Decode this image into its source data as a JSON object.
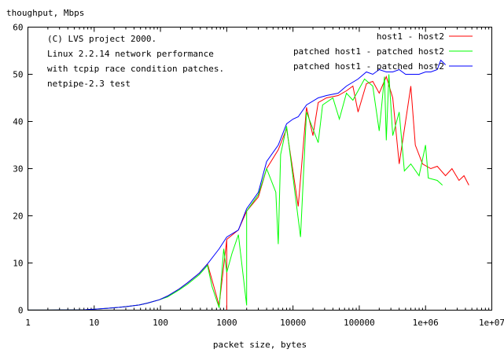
{
  "chart_data": {
    "type": "line",
    "ylabel": "thoughput, Mbps",
    "xlabel": "packet size, bytes",
    "x_scale": "log",
    "xlim": [
      1,
      10000000
    ],
    "ylim": [
      0,
      60
    ],
    "x_ticks": [
      {
        "value": 1,
        "label": "1"
      },
      {
        "value": 10,
        "label": "10"
      },
      {
        "value": 100,
        "label": "100"
      },
      {
        "value": 1000,
        "label": "1000"
      },
      {
        "value": 10000,
        "label": "10000"
      },
      {
        "value": 100000,
        "label": "100000"
      },
      {
        "value": 1000000,
        "label": "1e+06"
      },
      {
        "value": 10000000,
        "label": "1e+07"
      }
    ],
    "y_ticks": [
      {
        "value": 0,
        "label": "0"
      },
      {
        "value": 10,
        "label": "10"
      },
      {
        "value": 20,
        "label": "20"
      },
      {
        "value": 30,
        "label": "30"
      },
      {
        "value": 40,
        "label": "40"
      },
      {
        "value": 50,
        "label": "50"
      },
      {
        "value": 60,
        "label": "60"
      }
    ],
    "annotation": [
      "(C) LVS project 2000.",
      "Linux 2.2.14 network performance",
      "with tcpip race condition patches.",
      "netpipe-2.3 test"
    ],
    "legend_position": "top-right",
    "grid": false,
    "series": [
      {
        "name": "host1 - host2",
        "color": "#ff0000",
        "points": [
          [
            1,
            0.01
          ],
          [
            2,
            0.02
          ],
          [
            3,
            0.03
          ],
          [
            5,
            0.05
          ],
          [
            7,
            0.07
          ],
          [
            10,
            0.2
          ],
          [
            16,
            0.4
          ],
          [
            24,
            0.6
          ],
          [
            32,
            0.8
          ],
          [
            48,
            1.1
          ],
          [
            64,
            1.5
          ],
          [
            96,
            2.2
          ],
          [
            128,
            3.0
          ],
          [
            192,
            4.5
          ],
          [
            256,
            5.8
          ],
          [
            384,
            7.8
          ],
          [
            512,
            9.8
          ],
          [
            640,
            5.0
          ],
          [
            768,
            1.0
          ],
          [
            1000,
            15.0
          ],
          [
            1000,
            0
          ],
          [
            1000,
            15.0
          ],
          [
            1500,
            17.0
          ],
          [
            2000,
            21.0
          ],
          [
            3000,
            24.0
          ],
          [
            4000,
            30.0
          ],
          [
            6000,
            34.0
          ],
          [
            8000,
            38.5
          ],
          [
            12000,
            22.0
          ],
          [
            16000,
            43.0
          ],
          [
            20000,
            37.0
          ],
          [
            24000,
            44.0
          ],
          [
            32000,
            45.0
          ],
          [
            48000,
            45.5
          ],
          [
            64000,
            46.5
          ],
          [
            80000,
            47.5
          ],
          [
            96000,
            42.0
          ],
          [
            128000,
            48.0
          ],
          [
            160000,
            48.5
          ],
          [
            200000,
            46.0
          ],
          [
            256000,
            49.5
          ],
          [
            320000,
            45.0
          ],
          [
            400000,
            31.0
          ],
          [
            500000,
            40.0
          ],
          [
            600000,
            47.5
          ],
          [
            700000,
            35.0
          ],
          [
            900000,
            31.0
          ],
          [
            1200000,
            30.0
          ],
          [
            1500000,
            30.5
          ],
          [
            2000000,
            28.5
          ],
          [
            2500000,
            30.0
          ],
          [
            3200000,
            27.5
          ],
          [
            3800000,
            28.5
          ],
          [
            4500000,
            26.5
          ]
        ]
      },
      {
        "name": "patched host1 - patched host2",
        "color": "#00ff00",
        "points": [
          [
            1,
            0.01
          ],
          [
            2,
            0.02
          ],
          [
            3,
            0.03
          ],
          [
            5,
            0.05
          ],
          [
            7,
            0.07
          ],
          [
            10,
            0.2
          ],
          [
            16,
            0.4
          ],
          [
            24,
            0.6
          ],
          [
            32,
            0.8
          ],
          [
            48,
            1.1
          ],
          [
            64,
            1.5
          ],
          [
            96,
            2.2
          ],
          [
            128,
            2.8
          ],
          [
            192,
            4.3
          ],
          [
            256,
            5.5
          ],
          [
            384,
            7.5
          ],
          [
            512,
            9.5
          ],
          [
            600,
            5.0
          ],
          [
            768,
            0.5
          ],
          [
            900,
            13.0
          ],
          [
            1000,
            8.0
          ],
          [
            1200,
            12.0
          ],
          [
            1500,
            16.0
          ],
          [
            2000,
            1.0
          ],
          [
            2000,
            21.0
          ],
          [
            3000,
            24.5
          ],
          [
            4000,
            30.0
          ],
          [
            5500,
            25.0
          ],
          [
            6000,
            14.0
          ],
          [
            6500,
            33.0
          ],
          [
            8000,
            39.0
          ],
          [
            13000,
            15.5
          ],
          [
            16000,
            42.0
          ],
          [
            24000,
            35.5
          ],
          [
            28000,
            43.5
          ],
          [
            40000,
            45.0
          ],
          [
            50000,
            40.5
          ],
          [
            64000,
            46.0
          ],
          [
            80000,
            44.5
          ],
          [
            120000,
            49.0
          ],
          [
            160000,
            47.5
          ],
          [
            200000,
            38.0
          ],
          [
            240000,
            49.5
          ],
          [
            256000,
            36.0
          ],
          [
            280000,
            50.0
          ],
          [
            320000,
            37.0
          ],
          [
            400000,
            42.0
          ],
          [
            480000,
            29.5
          ],
          [
            600000,
            31.0
          ],
          [
            800000,
            28.5
          ],
          [
            1000000,
            35.0
          ],
          [
            1100000,
            28.0
          ],
          [
            1500000,
            27.5
          ],
          [
            1800000,
            26.5
          ]
        ]
      },
      {
        "name": "patched host1 - patched host2",
        "color": "#0000ff",
        "points": [
          [
            1,
            0.01
          ],
          [
            2,
            0.02
          ],
          [
            3,
            0.03
          ],
          [
            5,
            0.05
          ],
          [
            7,
            0.07
          ],
          [
            10,
            0.2
          ],
          [
            16,
            0.4
          ],
          [
            24,
            0.6
          ],
          [
            32,
            0.8
          ],
          [
            48,
            1.1
          ],
          [
            64,
            1.5
          ],
          [
            96,
            2.2
          ],
          [
            128,
            3.0
          ],
          [
            192,
            4.5
          ],
          [
            256,
            5.8
          ],
          [
            384,
            7.8
          ],
          [
            512,
            9.8
          ],
          [
            768,
            13.0
          ],
          [
            1000,
            15.5
          ],
          [
            1500,
            17.0
          ],
          [
            2000,
            21.5
          ],
          [
            3000,
            25.0
          ],
          [
            4000,
            31.5
          ],
          [
            6000,
            35.0
          ],
          [
            8000,
            39.5
          ],
          [
            10000,
            40.5
          ],
          [
            12000,
            41.0
          ],
          [
            16000,
            43.5
          ],
          [
            24000,
            45.0
          ],
          [
            32000,
            45.5
          ],
          [
            48000,
            46.0
          ],
          [
            64000,
            47.5
          ],
          [
            96000,
            49.0
          ],
          [
            128000,
            50.5
          ],
          [
            160000,
            50.0
          ],
          [
            200000,
            51.0
          ],
          [
            256000,
            50.5
          ],
          [
            320000,
            50.5
          ],
          [
            400000,
            51.0
          ],
          [
            500000,
            50.0
          ],
          [
            600000,
            50.0
          ],
          [
            800000,
            50.0
          ],
          [
            1000000,
            50.5
          ],
          [
            1200000,
            50.5
          ],
          [
            1500000,
            51.0
          ],
          [
            1700000,
            53.0
          ],
          [
            2000000,
            52.0
          ]
        ]
      }
    ]
  }
}
